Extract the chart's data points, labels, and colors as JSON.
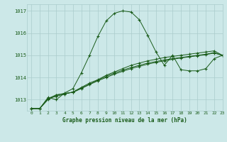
{
  "title": "Graphe pression niveau de la mer (hPa)",
  "background_color": "#cce8e8",
  "grid_color": "#aacccc",
  "line_color": "#1a5c1a",
  "xlim": [
    -0.5,
    23
  ],
  "ylim": [
    1012.5,
    1017.3
  ],
  "yticks": [
    1013,
    1014,
    1015,
    1016,
    1017
  ],
  "xticks": [
    0,
    1,
    2,
    3,
    4,
    5,
    6,
    7,
    8,
    9,
    10,
    11,
    12,
    13,
    14,
    15,
    16,
    17,
    18,
    19,
    20,
    21,
    22,
    23
  ],
  "series": [
    [
      1012.6,
      1012.6,
      1013.1,
      1013.0,
      1013.3,
      1013.5,
      1014.2,
      1015.0,
      1015.85,
      1016.55,
      1016.9,
      1017.0,
      1016.95,
      1016.6,
      1015.9,
      1015.15,
      1014.55,
      1015.0,
      1014.35,
      1014.3,
      1014.3,
      1014.4,
      1014.85,
      1015.0
    ],
    [
      1012.6,
      1012.6,
      1013.05,
      1013.15,
      1013.25,
      1013.35,
      1013.55,
      1013.75,
      1013.9,
      1014.1,
      1014.25,
      1014.4,
      1014.55,
      1014.65,
      1014.75,
      1014.82,
      1014.9,
      1014.95,
      1015.0,
      1015.05,
      1015.1,
      1015.15,
      1015.2,
      1015.0
    ],
    [
      1012.6,
      1012.6,
      1013.0,
      1013.2,
      1013.28,
      1013.33,
      1013.5,
      1013.68,
      1013.85,
      1014.0,
      1014.15,
      1014.28,
      1014.4,
      1014.5,
      1014.6,
      1014.68,
      1014.75,
      1014.82,
      1014.88,
      1014.93,
      1014.98,
      1015.03,
      1015.1,
      1015.0
    ],
    [
      1012.6,
      1012.6,
      1013.05,
      1013.22,
      1013.28,
      1013.33,
      1013.52,
      1013.7,
      1013.88,
      1014.05,
      1014.2,
      1014.33,
      1014.45,
      1014.55,
      1014.65,
      1014.72,
      1014.79,
      1014.85,
      1014.9,
      1014.95,
      1015.0,
      1015.05,
      1015.12,
      1015.0
    ]
  ],
  "figsize": [
    3.2,
    2.0
  ],
  "dpi": 100
}
